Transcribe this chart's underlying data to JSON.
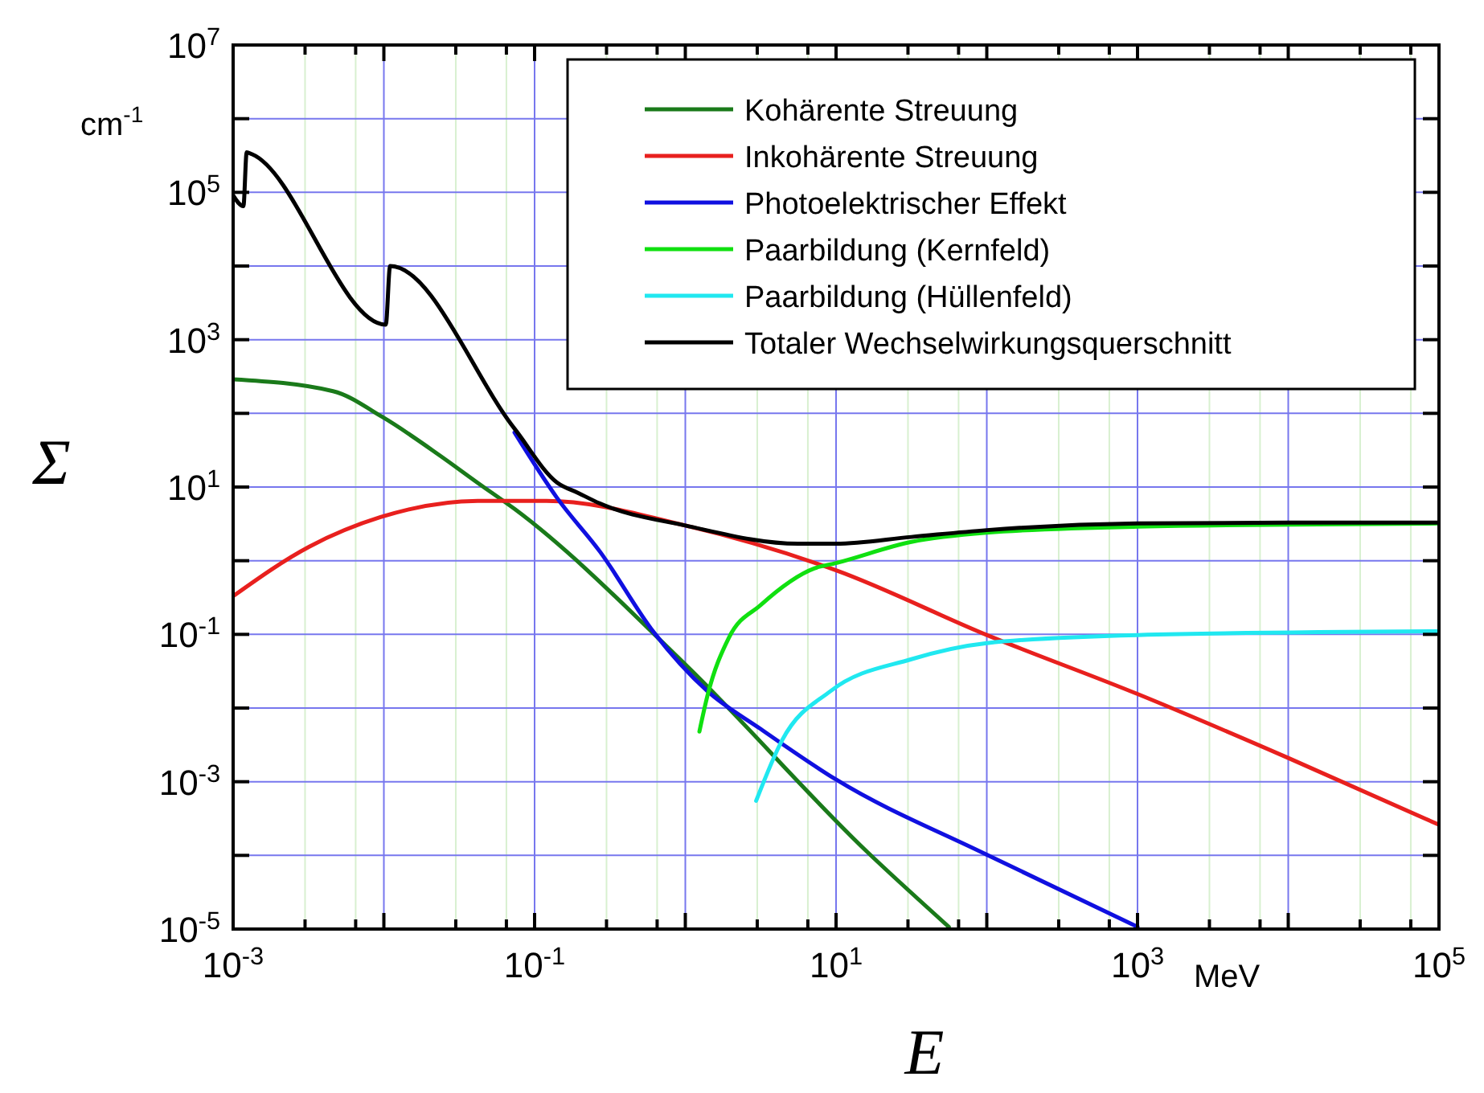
{
  "chart_data": {
    "type": "line",
    "xlabel": "E",
    "ylabel": "Σ",
    "annotations": [
      "cm$^{-1}$",
      "MeV"
    ],
    "log": "xy",
    "grid": true,
    "legend": "top right",
    "line_style": "solid",
    "marker": "none",
    "xlim": [
      0.001,
      100000
    ],
    "ylim": [
      1e-05,
      10000000
    ],
    "xticks": [
      {
        "value": 0.001,
        "label": "10$^{-3}$"
      },
      {
        "value": 0.003,
        "label": null
      },
      {
        "value": 0.0065,
        "label": null
      },
      {
        "value": 0.01,
        "label": null
      },
      {
        "value": 0.03,
        "label": null
      },
      {
        "value": 0.065,
        "label": null
      },
      {
        "value": 0.1,
        "label": "10$^{-1}$"
      },
      {
        "value": 0.3,
        "label": null
      },
      {
        "value": 0.65,
        "label": null
      },
      {
        "value": 1,
        "label": null
      },
      {
        "value": 3,
        "label": null
      },
      {
        "value": 6.5,
        "label": null
      },
      {
        "value": 10,
        "label": "10$^{1}$"
      },
      {
        "value": 30,
        "label": null
      },
      {
        "value": 65,
        "label": null
      },
      {
        "value": 100,
        "label": null
      },
      {
        "value": 300,
        "label": null
      },
      {
        "value": 650,
        "label": null
      },
      {
        "value": 1000,
        "label": "10$^{3}$"
      },
      {
        "value": 3000,
        "label": null
      },
      {
        "value": 6500,
        "label": null
      },
      {
        "value": 10000,
        "label": null
      },
      {
        "value": 30000,
        "label": null
      },
      {
        "value": 65000,
        "label": null
      },
      {
        "value": 100000,
        "label": "10$^{5}$"
      }
    ],
    "yticks": [
      {
        "value": 1e-05,
        "label": "10$^{-5}$"
      },
      {
        "value": 0.0001,
        "label": null
      },
      {
        "value": 0.001,
        "label": "10$^{-3}$"
      },
      {
        "value": 0.01,
        "label": null
      },
      {
        "value": 0.1,
        "label": "10$^{-1}$"
      },
      {
        "value": 1,
        "label": null
      },
      {
        "value": 10,
        "label": "10$^{1}$"
      },
      {
        "value": 100,
        "label": null
      },
      {
        "value": 1000,
        "label": "10$^{3}$"
      },
      {
        "value": 10000,
        "label": null
      },
      {
        "value": 100000,
        "label": "10$^{5}$"
      },
      {
        "value": 1000000,
        "label": null
      },
      {
        "value": 10000000,
        "label": "10$^{7}$"
      }
    ],
    "series": [
      {
        "name": "Kohärente Streuung",
        "color": "#1a7a1a",
        "x": [
          0.001,
          0.0046,
          0.0098,
          0.0234,
          0.0417,
          0.074,
          1,
          16.2,
          56
        ],
        "values": [
          290,
          200,
          89,
          27,
          11.5,
          5.0,
          0.039,
          0.00011,
          1.07e-05
        ]
      },
      {
        "name": "Inkohärente Streuung",
        "color": "#e8201e",
        "x": [
          0.001,
          0.0032,
          0.0095,
          0.042,
          0.12,
          1,
          10,
          100,
          1000,
          10000,
          100000
        ],
        "values": [
          0.33,
          1.55,
          3.9,
          6.5,
          6.5,
          3.0,
          0.74,
          0.098,
          0.0155,
          0.0021,
          0.00026
        ]
      },
      {
        "name": "Photoelektrischer Effekt",
        "color": "#1010e0",
        "x": [
          0.0736,
          0.141,
          0.272,
          0.617,
          1.4,
          3.16,
          10,
          100,
          1000
        ],
        "values": [
          55,
          7.1,
          1.32,
          0.107,
          0.017,
          0.0052,
          0.00107,
          0.000102,
          1.07e-05
        ]
      },
      {
        "name": "Paarbildung (Kernfeld)",
        "color": "#10e010",
        "x": [
          1.24,
          1.4,
          1.95,
          3.16,
          7.2,
          10,
          31.6,
          100,
          1000,
          100000
        ],
        "values": [
          0.0048,
          0.0145,
          0.091,
          0.25,
          0.79,
          0.93,
          1.8,
          2.4,
          2.9,
          3.2
        ]
      },
      {
        "name": "Paarbildung (Hüllenfeld)",
        "color": "#20e8f0",
        "x": [
          2.95,
          4.4,
          9.2,
          31.6,
          100,
          1000,
          100000
        ],
        "values": [
          0.00055,
          0.0037,
          0.017,
          0.046,
          0.076,
          0.098,
          0.11
        ]
      },
      {
        "name": "Totaler Wechselwirkungsquerschnitt",
        "color": "#000000",
        "x": [
          0.001,
          0.00117,
          0.00123,
          0.00133,
          0.0103,
          0.011,
          0.0736,
          0.141,
          0.195,
          0.27,
          1,
          5.6,
          10,
          31.6,
          100,
          1000,
          10000,
          100000
        ],
        "values": [
          91000,
          65000,
          350000,
          330000,
          1600,
          10000,
          62,
          11.5,
          8.3,
          6.0,
          3.0,
          1.7,
          1.7,
          2.1,
          2.6,
          3.2,
          3.3,
          3.3
        ]
      }
    ]
  }
}
